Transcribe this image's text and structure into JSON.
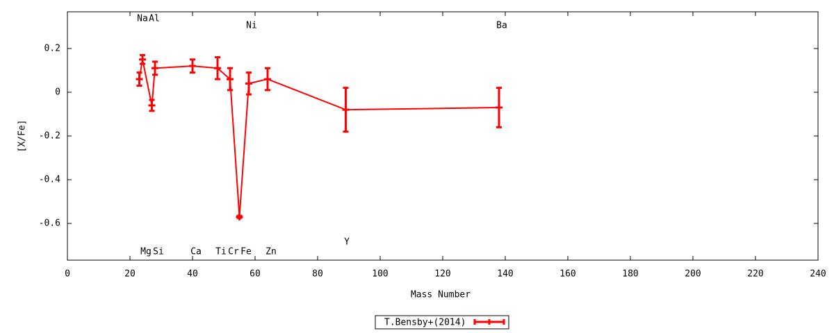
{
  "chart_data": {
    "type": "line",
    "xlabel": "Mass Number",
    "ylabel": "[X/Fe]",
    "x": [
      23,
      24,
      27,
      28,
      40,
      48,
      52,
      55,
      58,
      64,
      89,
      138
    ],
    "series": [
      {
        "name": "T.Bensby+(2014)",
        "color": "#ff0000",
        "values": [
          0.06,
          0.15,
          -0.06,
          0.11,
          0.12,
          0.11,
          0.06,
          -0.57,
          0.04,
          0.06,
          -0.08,
          -0.07
        ],
        "errors": [
          0.03,
          0.02,
          0.025,
          0.03,
          0.03,
          0.05,
          0.05,
          0.005,
          0.05,
          0.05,
          0.1,
          0.09
        ]
      }
    ],
    "annotations": [
      "Na",
      "Al",
      "Ni",
      "Ba",
      "Mg",
      "Si",
      "Ca",
      "Ti",
      "Cr",
      "Fe",
      "Zn",
      "Y"
    ],
    "xlim": [
      0,
      240
    ],
    "ylim": [
      -0.768,
      0.368
    ],
    "xticks": [
      0,
      20,
      40,
      60,
      80,
      100,
      120,
      140,
      160,
      180,
      200,
      220,
      240
    ],
    "yticks": [
      -0.6,
      -0.4,
      -0.2,
      0,
      0.2
    ],
    "grid": false,
    "legend": "bottom"
  }
}
